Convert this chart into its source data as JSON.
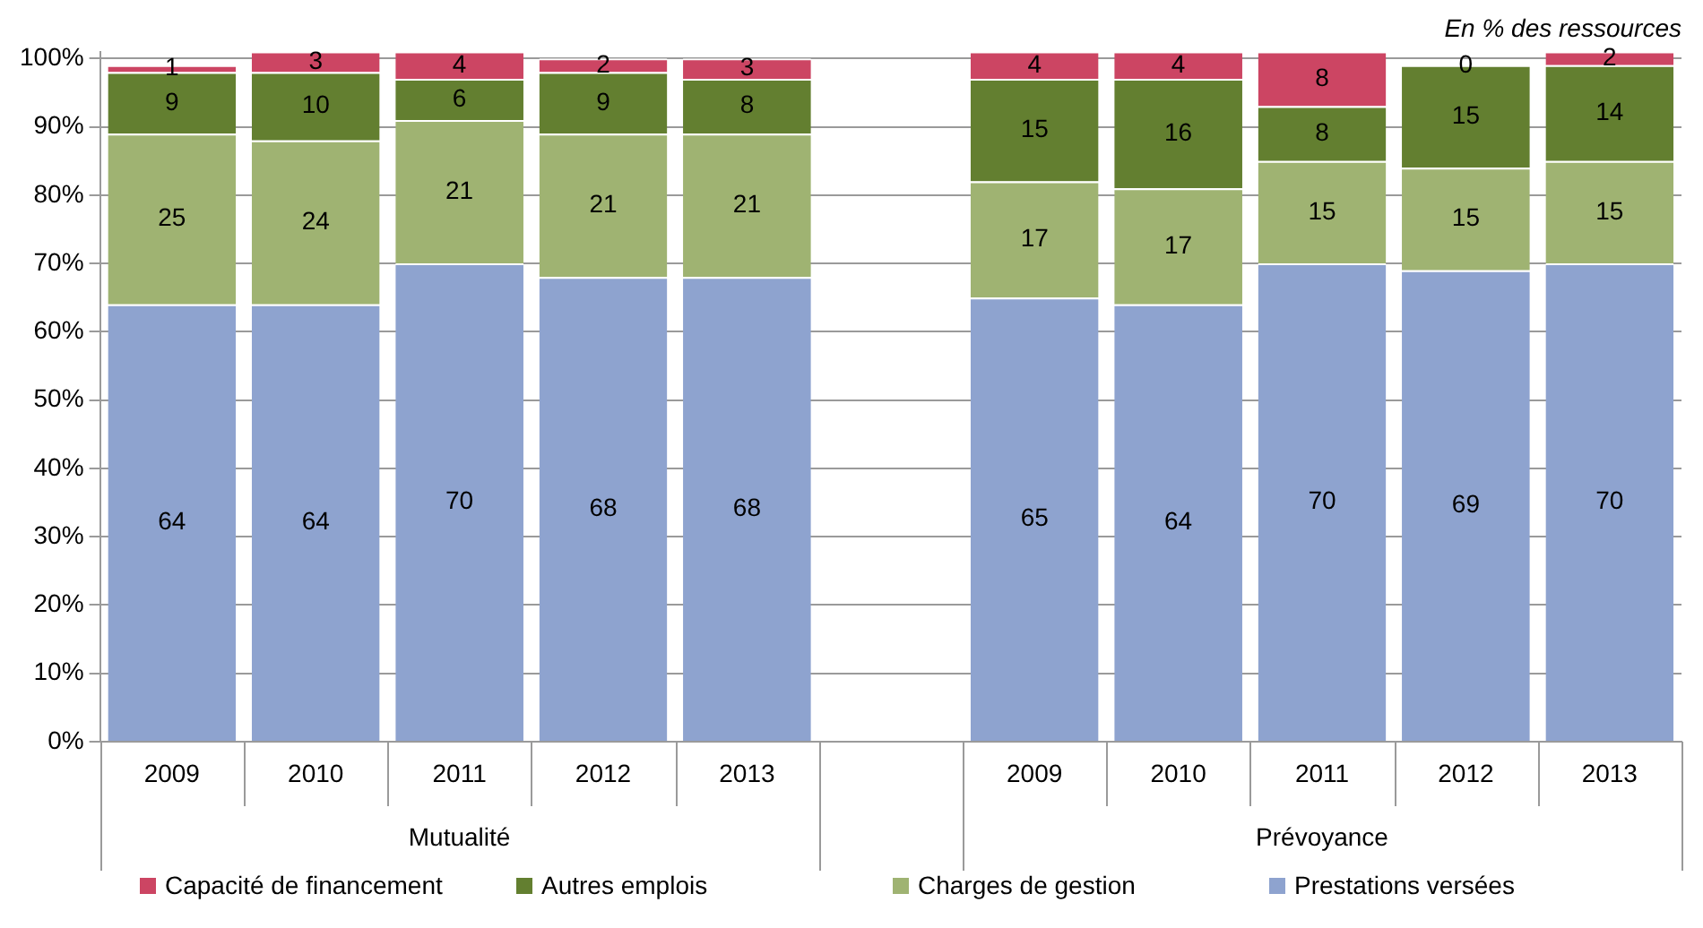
{
  "chart_data": {
    "type": "bar",
    "subtitle": "En % des ressources",
    "categories": [
      "2009",
      "2010",
      "2011",
      "2012",
      "2013",
      null,
      "2009",
      "2010",
      "2011",
      "2012",
      "2013"
    ],
    "series": [
      {
        "name": "Prestations versées",
        "color": "#8ea3cf",
        "values": [
          64,
          64,
          70,
          68,
          68,
          null,
          65,
          64,
          70,
          69,
          70
        ]
      },
      {
        "name": "Charges de gestion",
        "color": "#9fb372",
        "values": [
          25,
          24,
          21,
          21,
          21,
          null,
          17,
          17,
          15,
          15,
          15
        ]
      },
      {
        "name": "Autres emplois",
        "color": "#637f30",
        "values": [
          9,
          10,
          6,
          9,
          8,
          null,
          15,
          16,
          8,
          15,
          14
        ]
      },
      {
        "name": "Capacité de financement",
        "color": "#cc4563",
        "values": [
          1,
          3,
          4,
          2,
          3,
          null,
          4,
          4,
          8,
          0,
          2
        ]
      }
    ],
    "stacked": true,
    "data_labels": true,
    "ylim": [
      0,
      101
    ],
    "yticks": [
      {
        "value": 0,
        "label": "0%"
      },
      {
        "value": 10,
        "label": "10%"
      },
      {
        "value": 20,
        "label": "20%"
      },
      {
        "value": 30,
        "label": "30%"
      },
      {
        "value": 40,
        "label": "40%"
      },
      {
        "value": 50,
        "label": "50%"
      },
      {
        "value": 60,
        "label": "60%"
      },
      {
        "value": 70,
        "label": "70%"
      },
      {
        "value": 80,
        "label": "80%"
      },
      {
        "value": 90,
        "label": "90%"
      },
      {
        "value": 100,
        "label": "100%"
      }
    ],
    "grid": "y",
    "legend": "bottom",
    "annotations": [
      "Mutualité",
      "Prévoyance"
    ]
  }
}
